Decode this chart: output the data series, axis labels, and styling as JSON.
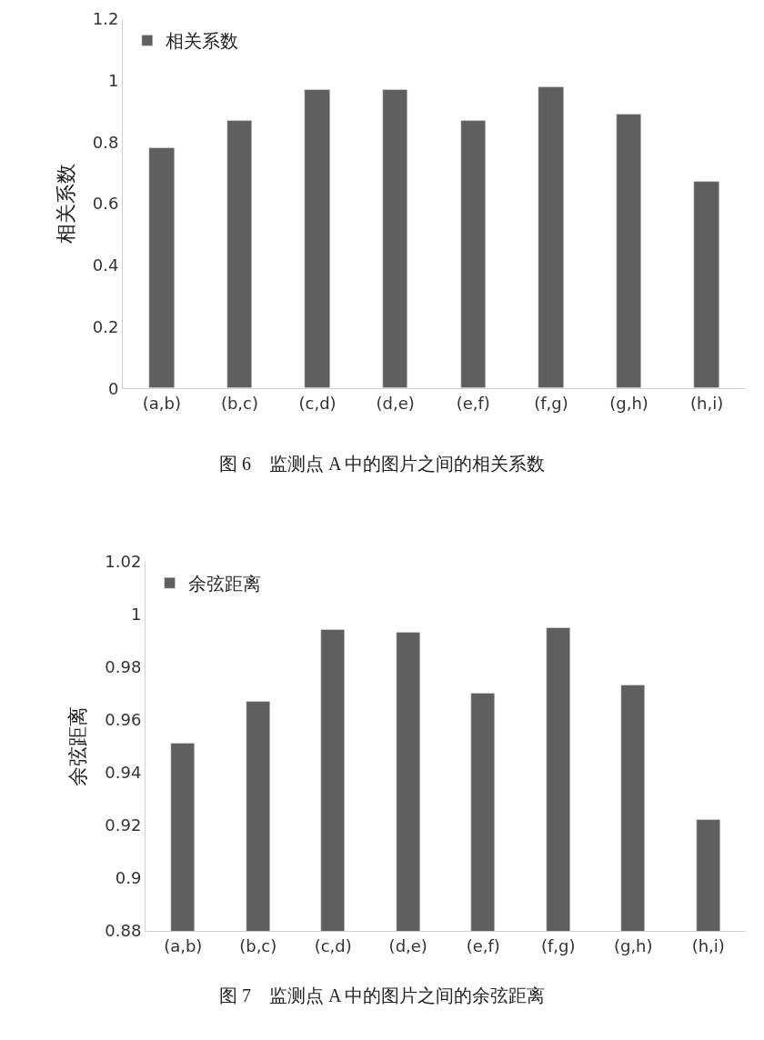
{
  "chart_data": [
    {
      "type": "bar",
      "ylabel": "相关系数",
      "categories": [
        "(a,b)",
        "(b,c)",
        "(c,d)",
        "(d,e)",
        "(e,f)",
        "(f,g)",
        "(g,h)",
        "(h,i)"
      ],
      "series": [
        {
          "name": "相关系数",
          "color": "#5f5f5f",
          "values": [
            0.78,
            0.87,
            0.97,
            0.97,
            0.87,
            0.98,
            0.89,
            0.67
          ]
        }
      ],
      "ylim": [
        0,
        1.2
      ],
      "yticks": [
        0,
        0.2,
        0.4,
        0.6,
        0.8,
        1,
        1.2
      ],
      "legend": "top left",
      "annotations": [
        "图 6　监测点 A 中的图片之间的相关系数"
      ]
    },
    {
      "type": "bar",
      "ylabel": "余弦距离",
      "categories": [
        "(a,b)",
        "(b,c)",
        "(c,d)",
        "(d,e)",
        "(e,f)",
        "(f,g)",
        "(g,h)",
        "(h,i)"
      ],
      "series": [
        {
          "name": "余弦距离",
          "color": "#5f5f5f",
          "values": [
            0.951,
            0.967,
            0.994,
            0.993,
            0.97,
            0.995,
            0.973,
            0.922
          ]
        }
      ],
      "ylim": [
        0.88,
        1.02
      ],
      "yticks": [
        0.88,
        0.9,
        0.92,
        0.94,
        0.96,
        0.98,
        1,
        1.02
      ],
      "legend": "top left",
      "annotations": [
        "图 7　监测点 A 中的图片之间的余弦距离"
      ]
    }
  ]
}
